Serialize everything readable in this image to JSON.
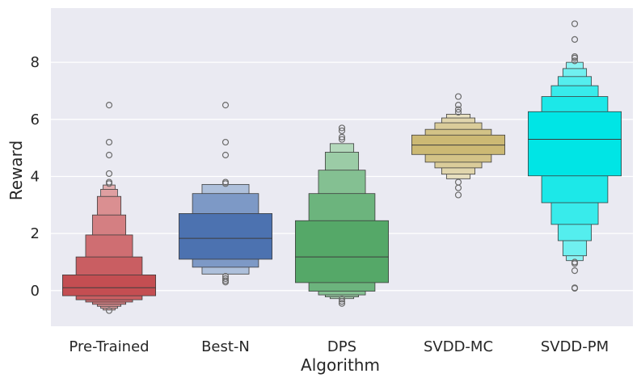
{
  "chart_data": {
    "type": "boxen",
    "title": "",
    "xlabel": "Algorithm",
    "ylabel": "Reward",
    "ylim": [
      -1.25,
      9.9
    ],
    "yticks": [
      0,
      2,
      4,
      6,
      8
    ],
    "grid": true,
    "background": "#eaeaf2",
    "gridColor": "#ffffff",
    "categories": [
      "Pre-Trained",
      "Best-N",
      "DPS",
      "SVDD-MC",
      "SVDD-PM"
    ],
    "series": [
      {
        "color": "#c44e52",
        "median": 0.1,
        "boxes": [
          [
            -0.18,
            0.55
          ],
          [
            -0.32,
            1.18
          ],
          [
            -0.4,
            1.95
          ],
          [
            -0.48,
            2.65
          ],
          [
            -0.55,
            3.3
          ],
          [
            -0.62,
            3.55
          ],
          [
            -0.68,
            3.7
          ]
        ],
        "outliers": [
          6.5,
          5.2,
          4.75,
          4.1,
          3.8,
          3.75,
          -0.7
        ]
      },
      {
        "color": "#4c72b0",
        "median": 1.83,
        "boxes": [
          [
            1.1,
            2.7
          ],
          [
            0.82,
            3.4
          ],
          [
            0.58,
            3.72
          ]
        ],
        "outliers": [
          6.5,
          5.2,
          4.75,
          3.8,
          3.75,
          0.5,
          0.42,
          0.35,
          0.3
        ]
      },
      {
        "color": "#55a868",
        "median": 1.18,
        "boxes": [
          [
            0.28,
            2.45
          ],
          [
            -0.02,
            3.4
          ],
          [
            -0.15,
            4.22
          ],
          [
            -0.22,
            4.85
          ],
          [
            -0.28,
            5.15
          ]
        ],
        "outliers": [
          5.7,
          5.6,
          5.38,
          5.3,
          -0.3,
          -0.38,
          -0.45
        ]
      },
      {
        "color": "#ccb974",
        "median": 5.1,
        "boxes": [
          [
            4.77,
            5.45
          ],
          [
            4.5,
            5.65
          ],
          [
            4.3,
            5.88
          ],
          [
            4.08,
            6.05
          ],
          [
            3.92,
            6.18
          ]
        ],
        "outliers": [
          6.8,
          6.5,
          6.35,
          6.25,
          3.8,
          3.6,
          3.35
        ]
      },
      {
        "color": "#00e5e5",
        "median": 5.3,
        "boxes": [
          [
            4.02,
            6.27
          ],
          [
            3.08,
            6.8
          ],
          [
            2.32,
            7.18
          ],
          [
            1.75,
            7.5
          ],
          [
            1.22,
            7.78
          ],
          [
            1.05,
            8.0
          ]
        ],
        "outliers": [
          9.35,
          8.8,
          8.2,
          8.15,
          8.05,
          1.0,
          0.95,
          0.7,
          0.1,
          0.08
        ]
      }
    ]
  }
}
